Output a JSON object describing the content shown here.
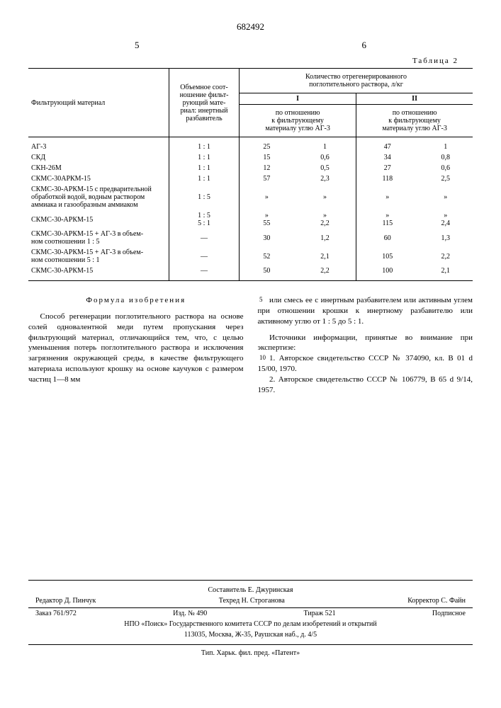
{
  "doc_number": "682492",
  "left_col_num": "5",
  "right_col_num": "6",
  "table_label": "Таблица 2",
  "table": {
    "col_material": "Фильтрующий материал",
    "col_ratio": "Объемное соот-\nношение фильт-\nрующий мате-\nриал: инертный\nразбавитель",
    "col_top": "Количество отрегенерированного\nпоглотительного раствора, л/кг",
    "col_I": "I",
    "col_II": "II",
    "col_sub_I": "по отношению\nк фильтрующему\nматериалу углю АГ-3",
    "col_sub_II": "по отношению\nк фильтрующему\nматериалу углю АГ-3",
    "rows": [
      {
        "m": "АГ-3",
        "r": "1 : 1",
        "a": "25",
        "b": "1",
        "c": "47",
        "d": "1"
      },
      {
        "m": "СКД",
        "r": "1 : 1",
        "a": "15",
        "b": "0,6",
        "c": "34",
        "d": "0,8"
      },
      {
        "m": "СКН-26М",
        "r": "1 : 1",
        "a": "12",
        "b": "0,5",
        "c": "27",
        "d": "0,6"
      },
      {
        "m": "СКМС-30АРКМ-15",
        "r": "1 : 1",
        "a": "57",
        "b": "2,3",
        "c": "118",
        "d": "2,5"
      },
      {
        "m": "СКМС-30-АРКМ-15 с предварительной обработкой водой, водным раствором аммиака и газообразным аммиаком",
        "r": "1 : 5",
        "a": "»",
        "b": "»",
        "c": "»",
        "d": "»"
      },
      {
        "m": "СКМС-30-АРКМ-15",
        "r": "1 : 5\n5 : 1",
        "a": "»\n55",
        "b": "»\n2,2",
        "c": "»\n115",
        "d": "»\n2,4"
      },
      {
        "m": "СКМС-30-АРКМ-15 + АГ-3 в объем-\nном соотношении 1 : 5",
        "r": "—",
        "a": "30",
        "b": "1,2",
        "c": "60",
        "d": "1,3"
      },
      {
        "m": "СКМС-30-АРКМ-15 + АГ-3 в объем-\nном соотношении 5 : 1",
        "r": "—",
        "a": "52",
        "b": "2,1",
        "c": "105",
        "d": "2,2"
      },
      {
        "m": "СКМС-30-АРКМ-15",
        "r": "—",
        "a": "50",
        "b": "2,2",
        "c": "100",
        "d": "2,1"
      }
    ]
  },
  "claim": {
    "heading": "Формула изобретения",
    "left": "Способ регенерации поглотительного раствора на основе солей одновалентной меди путем пропускания через фильтрующий материал, отличающийся тем, что, с целью уменьшения потерь поглотительного раствора и исключения загрязнения окружающей среды, в качестве фильтрующего материала используют крошку на основе каучуков с размером частиц 1—8 мм",
    "right1": "или смесь ее с инертным разбавителем или активным углем при отношении крошки к инертному разбавителю или активному углю от 1 : 5 до 5 : 1.",
    "right2_heading": "Источники информации, принятые во внимание при экспертизе:",
    "right2_item1": "1. Авторское свидетельство СССР № 374090, кл. В 01 d 15/00, 1970.",
    "right2_item2": "2. Авторское свидетельство СССР № 106779, В 65 d 9/14, 1957."
  },
  "footer": {
    "compiler": "Составитель Е. Джуринская",
    "editor": "Редактор Д. Пинчук",
    "techred": "Техред Н. Строганова",
    "corrector": "Корректор С. Файн",
    "order": "Заказ 761/972",
    "izd": "Изд. № 490",
    "tirazh": "Тираж 521",
    "sign": "Подписное",
    "org": "НПО «Поиск» Государственного комитета СССР по делам изобретений и открытий",
    "addr": "113035, Москва, Ж-35, Раушская наб., д. 4/5",
    "print": "Тип. Харьк. фил. пред. «Патент»"
  }
}
